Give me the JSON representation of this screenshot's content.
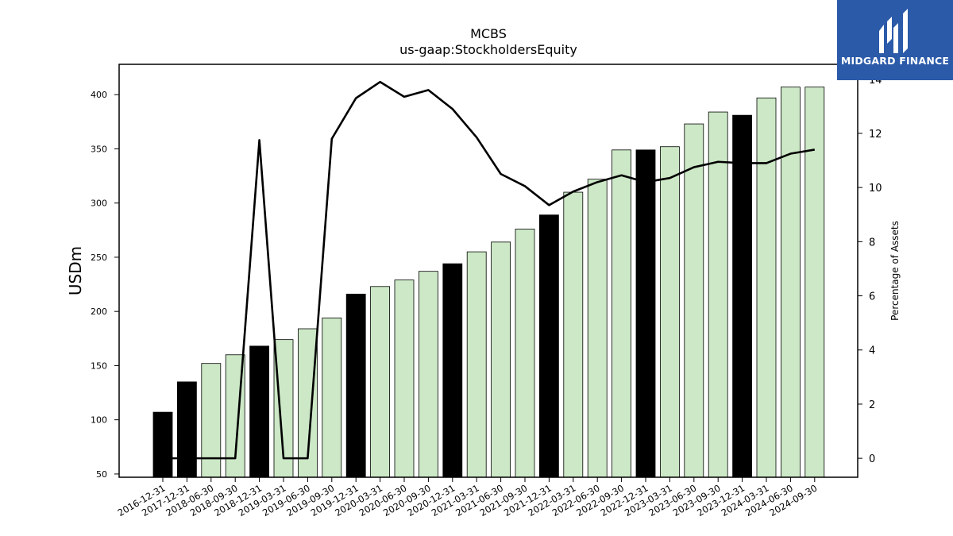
{
  "chart_data": {
    "type": "bar",
    "title": "MCBS",
    "subtitle": "us-gaap:StockholdersEquity",
    "ylabel": "USDm",
    "y2label": "Percentage of Assets",
    "ylim": [
      47,
      428
    ],
    "y2lim": [
      -0.7,
      14.55
    ],
    "yticks": [
      50,
      100,
      150,
      200,
      250,
      300,
      350,
      400
    ],
    "y2ticks": [
      0,
      2,
      4,
      6,
      8,
      10,
      12,
      14
    ],
    "grid": false,
    "categories": [
      "2016-12-31",
      "2017-12-31",
      "2018-06-30",
      "2018-09-30",
      "2018-12-31",
      "2019-03-31",
      "2019-06-30",
      "2019-09-30",
      "2019-12-31",
      "2020-03-31",
      "2020-06-30",
      "2020-09-30",
      "2020-12-31",
      "2021-03-31",
      "2021-06-30",
      "2021-09-30",
      "2021-12-31",
      "2022-03-31",
      "2022-06-30",
      "2022-09-30",
      "2022-12-31",
      "2023-03-31",
      "2023-06-30",
      "2023-09-30",
      "2023-12-31",
      "2024-03-31",
      "2024-06-30",
      "2024-09-30"
    ],
    "values": [
      107,
      135,
      152,
      160,
      168,
      174,
      184,
      194,
      216,
      223,
      229,
      237,
      244,
      255,
      264,
      276,
      289,
      310,
      322,
      349,
      349,
      352,
      373,
      384,
      381,
      397,
      407,
      407
    ],
    "annual_flags": [
      true,
      true,
      false,
      false,
      true,
      false,
      false,
      false,
      true,
      false,
      false,
      false,
      true,
      false,
      false,
      false,
      true,
      false,
      false,
      false,
      true,
      false,
      false,
      false,
      true,
      false,
      false,
      false
    ],
    "line_series": {
      "name": "",
      "axis": "right",
      "values": [
        0,
        0,
        0,
        0,
        11.75,
        0,
        0,
        11.8,
        13.3,
        13.9,
        13.35,
        13.6,
        12.9,
        11.85,
        10.5,
        10.05,
        9.35,
        9.85,
        10.2,
        10.45,
        10.2,
        10.35,
        10.75,
        10.95,
        10.9,
        10.9,
        11.25,
        11.4
      ]
    },
    "colors": {
      "annual_bar": "#000000",
      "quarterly_bar": "#cce8c6",
      "line": "#000000"
    }
  },
  "logo": {
    "text": "MIDGARD FINANCE",
    "background": "#2b5aa9"
  }
}
